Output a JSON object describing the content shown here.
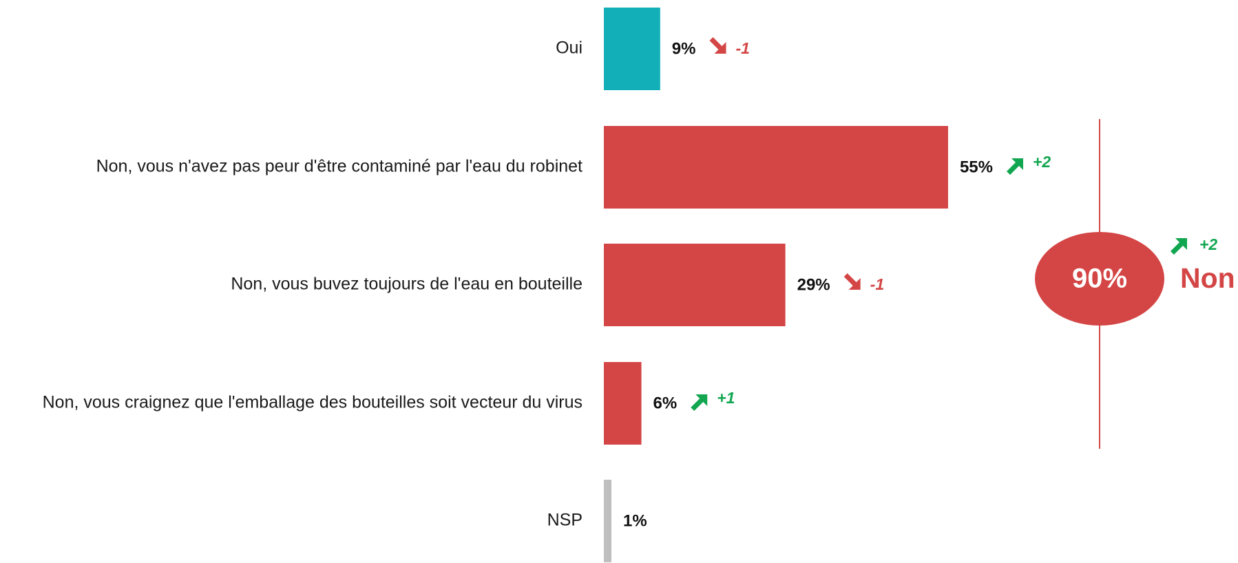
{
  "chart_data": {
    "type": "bar",
    "orientation": "horizontal",
    "categories": [
      "Oui",
      "Non, vous n'avez pas peur d'être contaminé par l'eau du robinet",
      "Non, vous buvez toujours de l'eau en bouteille",
      "Non, vous craignez que l'emballage des bouteilles soit vecteur du virus",
      "NSP"
    ],
    "values": [
      9,
      55,
      29,
      6,
      1
    ],
    "value_labels": [
      "9%",
      "55%",
      "29%",
      "6%",
      "1%"
    ],
    "colors": [
      "#12afb9",
      "#d44545",
      "#d44545",
      "#d44545",
      "#bfbfbf"
    ],
    "changes": [
      -1,
      2,
      -1,
      1,
      null
    ],
    "change_labels": [
      "-1",
      "+2",
      "-1",
      "+1",
      null
    ],
    "up_color": "#12a650",
    "down_color": "#d44545",
    "xlim": [
      0,
      100
    ],
    "total": {
      "value": 90,
      "value_label": "90%",
      "label": "Non",
      "change": 2,
      "change_label": "+2",
      "color": "#d44545"
    }
  }
}
